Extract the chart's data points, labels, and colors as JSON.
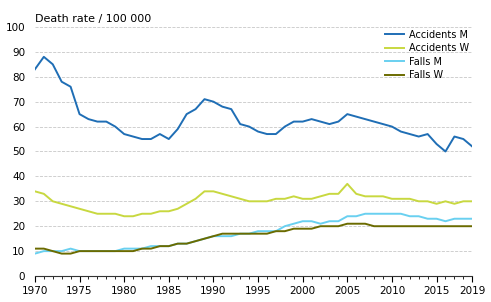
{
  "years": [
    1970,
    1971,
    1972,
    1973,
    1974,
    1975,
    1976,
    1977,
    1978,
    1979,
    1980,
    1981,
    1982,
    1983,
    1984,
    1985,
    1986,
    1987,
    1988,
    1989,
    1990,
    1991,
    1992,
    1993,
    1994,
    1995,
    1996,
    1997,
    1998,
    1999,
    2000,
    2001,
    2002,
    2003,
    2004,
    2005,
    2006,
    2007,
    2008,
    2009,
    2010,
    2011,
    2012,
    2013,
    2014,
    2015,
    2016,
    2017,
    2018,
    2019
  ],
  "accidents_m": [
    83,
    88,
    85,
    78,
    76,
    65,
    63,
    62,
    62,
    60,
    57,
    56,
    55,
    55,
    57,
    55,
    59,
    65,
    67,
    71,
    70,
    68,
    67,
    61,
    60,
    58,
    57,
    57,
    60,
    62,
    62,
    63,
    62,
    61,
    62,
    65,
    64,
    63,
    62,
    61,
    60,
    58,
    57,
    56,
    57,
    53,
    50,
    56,
    55,
    52
  ],
  "accidents_w": [
    34,
    33,
    30,
    29,
    28,
    27,
    26,
    25,
    25,
    25,
    24,
    24,
    25,
    25,
    26,
    26,
    27,
    29,
    31,
    34,
    34,
    33,
    32,
    31,
    30,
    30,
    30,
    31,
    31,
    32,
    31,
    31,
    32,
    33,
    33,
    37,
    33,
    32,
    32,
    32,
    31,
    31,
    31,
    30,
    30,
    29,
    30,
    29,
    30,
    30
  ],
  "falls_m": [
    9,
    10,
    10,
    10,
    11,
    10,
    10,
    10,
    10,
    10,
    11,
    11,
    11,
    12,
    12,
    12,
    13,
    13,
    14,
    15,
    16,
    16,
    16,
    17,
    17,
    18,
    18,
    18,
    20,
    21,
    22,
    22,
    21,
    22,
    22,
    24,
    24,
    25,
    25,
    25,
    25,
    25,
    24,
    24,
    23,
    23,
    22,
    23,
    23,
    23
  ],
  "falls_w": [
    11,
    11,
    10,
    9,
    9,
    10,
    10,
    10,
    10,
    10,
    10,
    10,
    11,
    11,
    12,
    12,
    13,
    13,
    14,
    15,
    16,
    17,
    17,
    17,
    17,
    17,
    17,
    18,
    18,
    19,
    19,
    19,
    20,
    20,
    20,
    21,
    21,
    21,
    20,
    20,
    20,
    20,
    20,
    20,
    20,
    20,
    20,
    20,
    20,
    20
  ],
  "color_accidents_m": "#1f6eb5",
  "color_accidents_w": "#c8d840",
  "color_falls_m": "#69d0f0",
  "color_falls_w": "#6b6b00",
  "ylabel": "Death rate / 100 000",
  "ylim": [
    0,
    100
  ],
  "xlim": [
    1970,
    2019
  ],
  "yticks": [
    0,
    10,
    20,
    30,
    40,
    50,
    60,
    70,
    80,
    90,
    100
  ],
  "xticks": [
    1970,
    1975,
    1980,
    1985,
    1990,
    1995,
    2000,
    2005,
    2010,
    2015,
    2019
  ],
  "legend_labels": [
    "Accidents M",
    "Accidents W",
    "Falls M",
    "Falls W"
  ],
  "line_width": 1.4,
  "grid_color": "#c8c8c8",
  "grid_style": "--",
  "grid_lw": 0.6,
  "tick_labelsize": 7.5,
  "ylabel_fontsize": 8,
  "legend_fontsize": 7
}
